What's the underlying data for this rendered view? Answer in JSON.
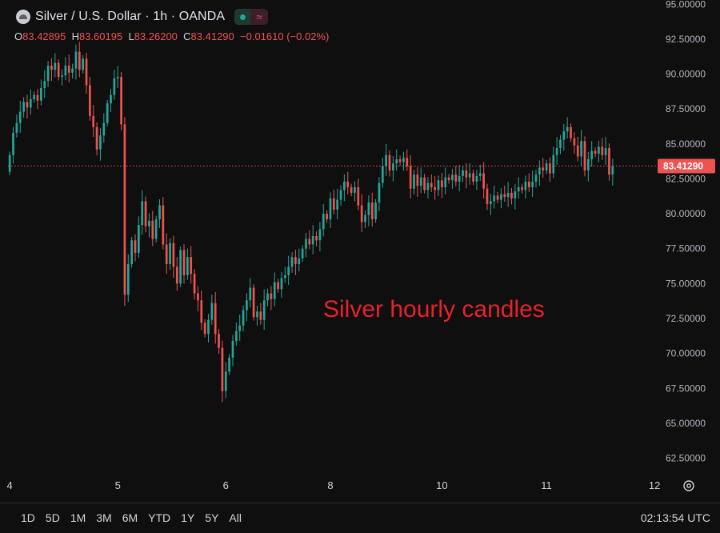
{
  "header": {
    "title": "Silver / U.S. Dollar · 1h · OANDA",
    "market_status_icon": "green-dot-icon",
    "extended_icon": "wave-icon",
    "ohlc": {
      "o_label": "O",
      "o_value": "83.42895",
      "h_label": "H",
      "h_value": "83.60195",
      "l_label": "L",
      "l_value": "83.26200",
      "c_label": "C",
      "c_value": "83.41290",
      "change": "−0.01610 (−0.02%)"
    }
  },
  "annotation": "Silver hourly candles",
  "current_price_label": "83.41290",
  "time_range_buttons": [
    "1D",
    "5D",
    "1M",
    "3M",
    "6M",
    "YTD",
    "1Y",
    "5Y",
    "All"
  ],
  "clock": "02:13:54 UTC",
  "colors": {
    "up": "#26a69a",
    "down": "#ef5350",
    "background": "#0f0f0f",
    "annotation": "#e8212a"
  },
  "chart_data": {
    "type": "candlestick",
    "ylim": [
      61.5,
      95.3
    ],
    "y_ticks": [
      "95.00000",
      "92.50000",
      "90.00000",
      "87.50000",
      "85.00000",
      "82.50000",
      "80.00000",
      "77.50000",
      "75.00000",
      "72.50000",
      "70.00000",
      "67.50000",
      "65.00000",
      "62.50000"
    ],
    "y_tick_values": [
      95,
      92.5,
      90,
      87.5,
      85,
      82.5,
      80,
      77.5,
      75,
      72.5,
      70,
      67.5,
      65,
      62.5
    ],
    "x_labels": [
      "4",
      "5",
      "6",
      "8",
      "10",
      "11",
      "12"
    ],
    "x_label_index": [
      0,
      31,
      62,
      92,
      124,
      154,
      185
    ],
    "current_price": 83.4129,
    "closes": [
      84.2,
      85.8,
      86.5,
      87.3,
      88.0,
      87.6,
      88.2,
      88.5,
      88.1,
      89.0,
      89.5,
      90.6,
      90.3,
      90.8,
      89.8,
      89.9,
      90.6,
      90.1,
      90.4,
      91.6,
      90.3,
      91.1,
      89.2,
      87.0,
      86.2,
      84.6,
      85.6,
      86.5,
      87.9,
      88.5,
      89.7,
      89.8,
      86.4,
      74.2,
      76.4,
      78.1,
      77.2,
      79.2,
      80.9,
      79.1,
      79.5,
      78.2,
      79.6,
      80.6,
      77.8,
      76.4,
      77.9,
      76.2,
      75.0,
      77.4,
      75.6,
      76.9,
      75.7,
      74.3,
      73.8,
      72.2,
      71.4,
      72.4,
      73.6,
      71.4,
      70.4,
      67.3,
      68.7,
      69.7,
      70.9,
      71.6,
      72.0,
      73.1,
      73.8,
      74.7,
      72.6,
      73.0,
      72.4,
      73.8,
      74.3,
      73.9,
      75.1,
      74.6,
      75.4,
      75.6,
      76.2,
      76.9,
      76.4,
      76.8,
      77.5,
      78.2,
      77.8,
      78.4,
      78.1,
      78.9,
      80.0,
      79.6,
      81.1,
      80.3,
      81.0,
      81.7,
      82.3,
      81.9,
      81.5,
      81.9,
      80.6,
      79.4,
      79.9,
      80.8,
      79.6,
      80.8,
      82.2,
      83.4,
      84.2,
      83.1,
      83.6,
      83.9,
      83.7,
      84.0,
      83.4,
      81.8,
      82.8,
      82.0,
      82.6,
      81.7,
      82.2,
      81.9,
      81.7,
      82.4,
      81.9,
      82.6,
      82.4,
      82.8,
      82.3,
      82.7,
      83.1,
      82.6,
      82.9,
      82.3,
      82.7,
      82.9,
      81.8,
      80.7,
      80.9,
      81.3,
      81.0,
      81.4,
      81.2,
      81.5,
      81.1,
      81.6,
      81.9,
      81.7,
      82.3,
      81.9,
      82.3,
      82.8,
      83.3,
      83.1,
      83.6,
      82.9,
      84.2,
      84.7,
      85.3,
      85.9,
      86.2,
      85.4,
      84.9,
      84.1,
      85.2,
      83.1,
      83.9,
      84.5,
      84.3,
      84.8,
      84.2,
      84.7,
      82.8,
      83.41
    ]
  }
}
